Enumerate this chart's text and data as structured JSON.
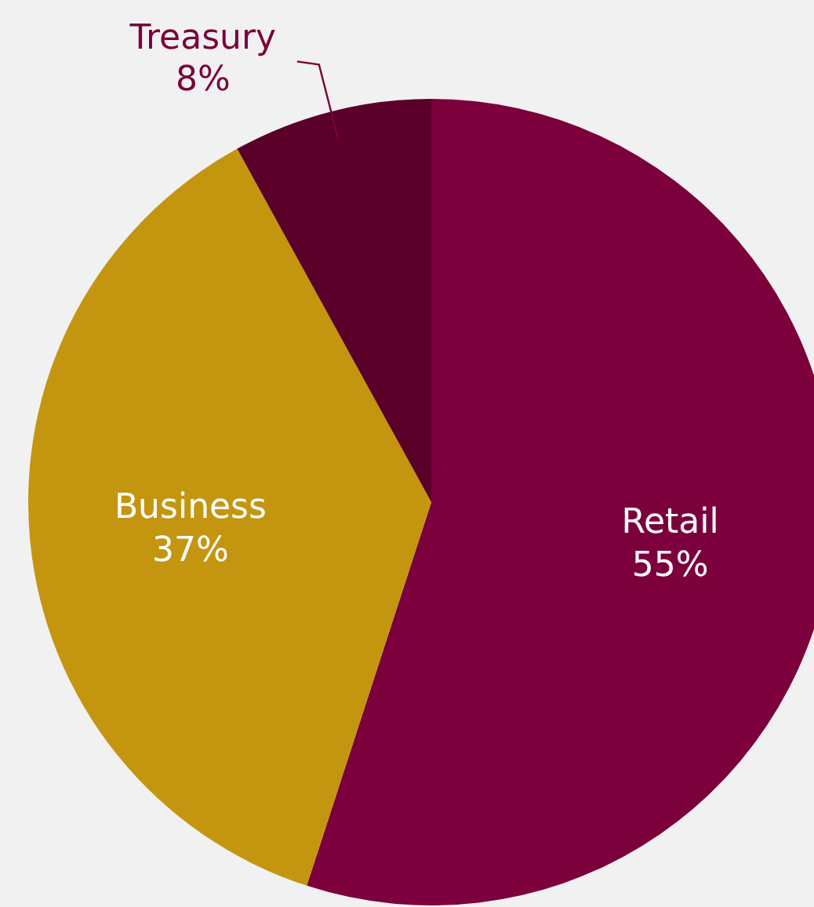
{
  "chart_data": {
    "type": "pie",
    "categories": [
      "Retail",
      "Business",
      "Treasury"
    ],
    "values": [
      55,
      37,
      8
    ],
    "colors": [
      "#7b003b",
      "#c4950f",
      "#5a0029"
    ],
    "value_labels": [
      "55%",
      "37%",
      "8%"
    ]
  }
}
